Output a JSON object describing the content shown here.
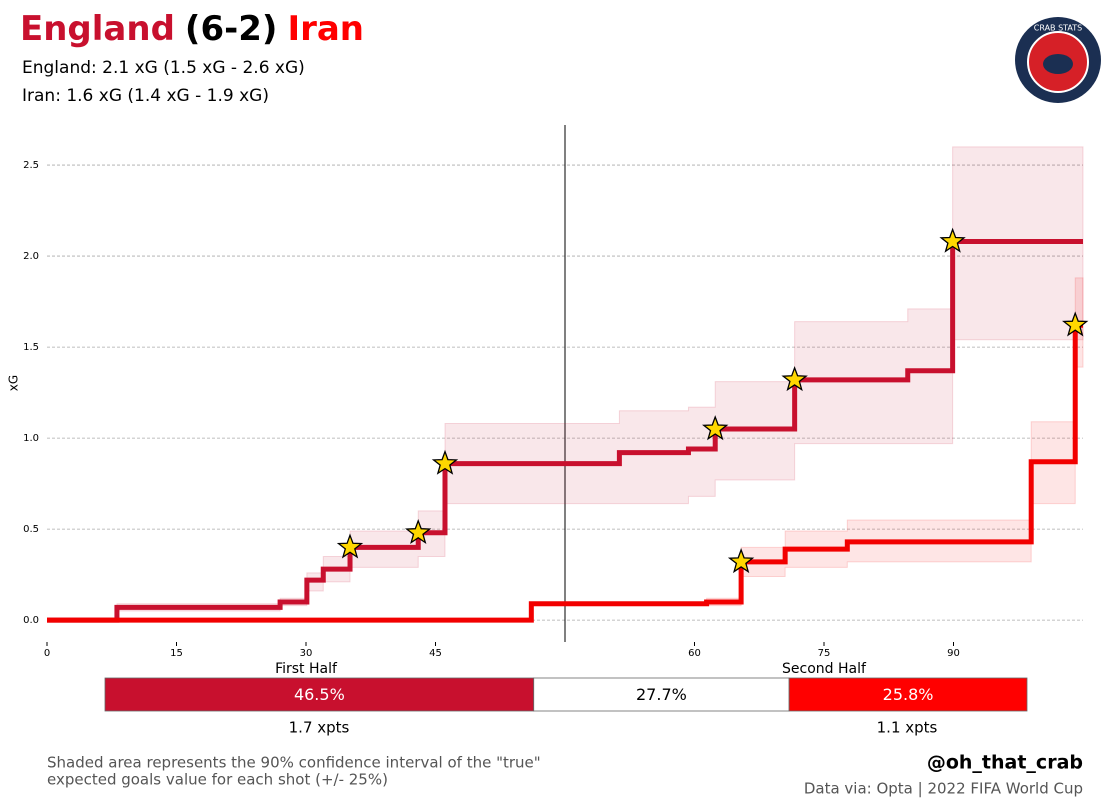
{
  "chart_data": {
    "type": "step",
    "title_parts": [
      "England",
      "(6-2)",
      "Iran"
    ],
    "subtitles": [
      "England: 2.1 xG (1.5 xG - 2.6 xG)",
      "Iran: 1.6 xG (1.4 xG - 1.9 xG)"
    ],
    "ylabel": "xG",
    "half_labels": [
      "First Half",
      "Second Half"
    ],
    "half_divider": 60,
    "xlim": [
      0,
      120
    ],
    "xticks": [
      0,
      15,
      30,
      45,
      {
        "value": 75,
        "label": "60"
      },
      {
        "value": 90,
        "label": "75"
      },
      {
        "value": 105,
        "label": "90"
      }
    ],
    "ylim": [
      -0.12,
      2.72
    ],
    "yticks": [
      {
        "value": 0,
        "label": "0.0"
      },
      0.5,
      {
        "value": 1,
        "label": "1.0"
      },
      1.5,
      {
        "value": 2,
        "label": "2.0"
      },
      2.5
    ],
    "grid": true,
    "series": [
      {
        "name": "England",
        "color": "#c8102e",
        "x": [
          0,
          8.1,
          27,
          30.1,
          32,
          35.1,
          43,
          46.1,
          66.3,
          74.3,
          77.4,
          86.6,
          99.7,
          104.9
        ],
        "values": [
          0,
          0.07,
          0.1,
          0.22,
          0.28,
          0.4,
          0.48,
          0.86,
          0.92,
          0.94,
          1.05,
          1.32,
          1.37,
          2.08
        ],
        "lower": [
          0,
          0.05,
          0.08,
          0.16,
          0.21,
          0.29,
          0.35,
          0.64,
          0.64,
          0.68,
          0.77,
          0.97,
          0.97,
          1.54
        ],
        "upper": [
          0,
          0.09,
          0.12,
          0.26,
          0.35,
          0.49,
          0.6,
          1.08,
          1.15,
          1.17,
          1.31,
          1.64,
          1.71,
          2.6
        ],
        "goals": [
          false,
          false,
          false,
          false,
          false,
          true,
          true,
          true,
          false,
          false,
          true,
          true,
          false,
          true
        ]
      },
      {
        "name": "Iran",
        "color": "#f20000",
        "x": [
          0,
          56.1,
          76.4,
          80.4,
          85.5,
          92.7,
          114,
          119.1
        ],
        "values": [
          0,
          0.09,
          0.1,
          0.32,
          0.39,
          0.43,
          0.87,
          1.62
        ],
        "lower": [
          0,
          0.08,
          0.08,
          0.24,
          0.29,
          0.32,
          0.64,
          1.39
        ],
        "upper": [
          0,
          0.1,
          0.12,
          0.4,
          0.49,
          0.55,
          1.09,
          1.88
        ],
        "goals": [
          false,
          false,
          false,
          true,
          false,
          false,
          false,
          true
        ]
      }
    ],
    "outcome": {
      "values": [
        46.5,
        27.7,
        25.8
      ],
      "value_labels": [
        "46.5%",
        "27.7%",
        "25.8%"
      ],
      "colors": [
        "#c8102e",
        "#ffffff",
        "#ff0000"
      ],
      "text_colors": [
        "#ffffff",
        "#000000",
        "#ffffff"
      ],
      "xpts": [
        "1.7 xpts",
        "1.1 xpts"
      ]
    },
    "footnote": [
      "Shaded area represents the 90% confidence interval of the \"true\"",
      "expected goals value for each shot (+/- 25%)"
    ],
    "handle": "@oh_that_crab",
    "source": "Data via: Opta | 2022 FIFA World Cup",
    "logo_text": "CRAB STATS"
  }
}
